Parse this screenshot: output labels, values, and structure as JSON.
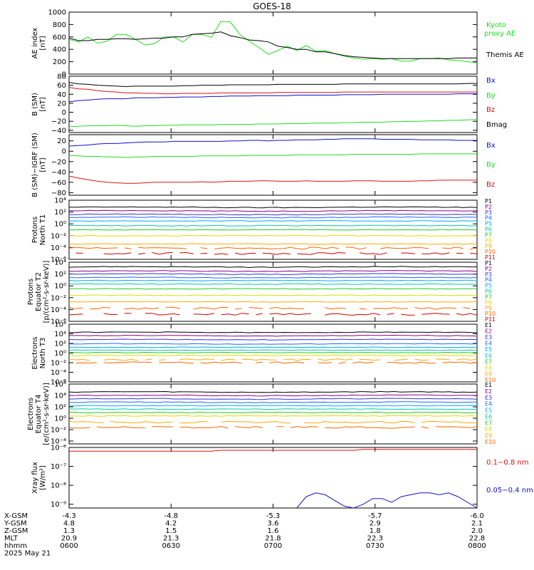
{
  "title": "GOES-18",
  "colors": {
    "black": "#000000",
    "green": "#22dd22",
    "red": "#dd1111",
    "blue": "#1111cc",
    "spectrum": [
      "#000000",
      "#8a008a",
      "#3333dd",
      "#2266ff",
      "#00aaff",
      "#00ccaa",
      "#22cc22",
      "#dddd00",
      "#ffaa00",
      "#ff6600",
      "#cc0000"
    ]
  },
  "footer": {
    "rows": [
      {
        "label": "X-GSM",
        "values": [
          "-4.3",
          "-4.8",
          "-5.3",
          "-5.7",
          "-6.0"
        ]
      },
      {
        "label": "Y-GSM",
        "values": [
          "4.8",
          "4.2",
          "3.6",
          "2.9",
          "2.1"
        ]
      },
      {
        "label": "Z-GSM",
        "values": [
          "1.3",
          "1.5",
          "1.6",
          "1.8",
          "2.0"
        ]
      },
      {
        "label": "MLT",
        "values": [
          "20.9",
          "21.3",
          "21.8",
          "22.3",
          "22.8"
        ]
      },
      {
        "label": "hhmm",
        "values": [
          "0600",
          "0630",
          "0700",
          "0730",
          "0800"
        ]
      }
    ],
    "date": "2025 May 21"
  },
  "chart_data": [
    {
      "type": "line",
      "ylabel": [
        "AE index",
        "[nT]"
      ],
      "ylim": [
        0,
        1000
      ],
      "yticks": [
        "1000",
        "800",
        "600",
        "400",
        "200",
        "0"
      ],
      "series": [
        {
          "name": "Kyoto proxy AE",
          "color": "green",
          "values": [
            560,
            520,
            600,
            500,
            530,
            640,
            640,
            560,
            470,
            490,
            600,
            600,
            520,
            640,
            640,
            590,
            850,
            840,
            640,
            530,
            430,
            320,
            380,
            450,
            380,
            460,
            370,
            380,
            330,
            290,
            260,
            240,
            250,
            240,
            250,
            210,
            210,
            250,
            250,
            260,
            230,
            220,
            200,
            180
          ]
        },
        {
          "name": "Themis AE",
          "color": "black",
          "values": [
            580,
            540,
            540,
            560,
            560,
            570,
            570,
            560,
            570,
            580,
            580,
            600,
            600,
            640,
            650,
            660,
            680,
            620,
            590,
            550,
            540,
            520,
            450,
            430,
            400,
            400,
            360,
            360,
            330,
            300,
            280,
            270,
            260,
            250,
            250,
            250,
            250,
            250,
            250,
            250,
            250,
            260,
            260,
            260
          ]
        }
      ]
    },
    {
      "type": "line",
      "ylabel": [
        "B (SM)",
        "[nT]"
      ],
      "ylim": [
        -45,
        80
      ],
      "yticks": [
        "80",
        "60",
        "40",
        "20",
        "0",
        "−20",
        "−40"
      ],
      "series": [
        {
          "name": "Bx",
          "color": "blue",
          "values": [
            23,
            26,
            27,
            29,
            30,
            30,
            30,
            32,
            32,
            32,
            33,
            33,
            34,
            34,
            34,
            35,
            35,
            36,
            36,
            36,
            37,
            37,
            37,
            37,
            38,
            38,
            38,
            38,
            38,
            39,
            39,
            39,
            39,
            40,
            40,
            40,
            40,
            40,
            40,
            40,
            40,
            41,
            41,
            41
          ]
        },
        {
          "name": "By",
          "color": "green",
          "values": [
            -32,
            -31,
            -30,
            -30,
            -30,
            -29,
            -30,
            -31,
            -30,
            -30,
            -29,
            -29,
            -28,
            -28,
            -28,
            -28,
            -27,
            -27,
            -27,
            -27,
            -26,
            -26,
            -26,
            -25,
            -25,
            -25,
            -24,
            -24,
            -24,
            -23,
            -23,
            -22,
            -22,
            -22,
            -21,
            -21,
            -20,
            -20,
            -19,
            -19,
            -18,
            -18,
            -17,
            -16
          ]
        },
        {
          "name": "Bz",
          "color": "red",
          "values": [
            55,
            52,
            51,
            48,
            46,
            45,
            43,
            43,
            42,
            42,
            41,
            41,
            42,
            42,
            42,
            42,
            43,
            43,
            43,
            43,
            43,
            43,
            44,
            44,
            44,
            44,
            44,
            44,
            44,
            45,
            45,
            45,
            45,
            45,
            45,
            45,
            45,
            45,
            45,
            45,
            45,
            45,
            45,
            45
          ]
        },
        {
          "name": "Bmag",
          "color": "black",
          "values": [
            66,
            63,
            62,
            60,
            59,
            58,
            57,
            58,
            58,
            58,
            58,
            58,
            59,
            59,
            60,
            60,
            60,
            61,
            61,
            61,
            61,
            61,
            62,
            62,
            62,
            62,
            62,
            62,
            62,
            63,
            63,
            63,
            63,
            63,
            63,
            63,
            63,
            63,
            63,
            63,
            63,
            63,
            64,
            64
          ]
        }
      ]
    },
    {
      "type": "line",
      "ylabel": [
        "B (SM)−IGRF (SM)",
        "[nT]"
      ],
      "ylim": [
        -85,
        32
      ],
      "yticks": [
        "20",
        "0",
        "−20",
        "−40",
        "−60",
        "−80"
      ],
      "series": [
        {
          "name": "Bx",
          "color": "blue",
          "values": [
            10,
            11,
            12,
            14,
            15,
            15,
            16,
            17,
            18,
            18,
            18,
            19,
            19,
            19,
            19,
            19,
            19,
            20,
            20,
            21,
            21,
            20,
            21,
            21,
            22,
            22,
            22,
            23,
            23,
            24,
            24,
            24,
            24,
            23,
            23,
            23,
            23,
            22,
            22,
            22,
            22,
            21,
            21,
            21
          ]
        },
        {
          "name": "By",
          "color": "green",
          "values": [
            -8,
            -9,
            -10,
            -10,
            -11,
            -11,
            -12,
            -11,
            -11,
            -10,
            -10,
            -10,
            -10,
            -10,
            -9,
            -9,
            -9,
            -9,
            -9,
            -8,
            -8,
            -8,
            -8,
            -8,
            -7,
            -7,
            -7,
            -7,
            -7,
            -7,
            -6,
            -6,
            -6,
            -6,
            -6,
            -6,
            -6,
            -5,
            -5,
            -5,
            -5,
            -5,
            -5,
            -5
          ]
        },
        {
          "name": "Bz",
          "color": "red",
          "values": [
            -48,
            -52,
            -55,
            -58,
            -60,
            -61,
            -62,
            -62,
            -61,
            -60,
            -60,
            -60,
            -60,
            -60,
            -59,
            -60,
            -59,
            -58,
            -58,
            -58,
            -57,
            -57,
            -58,
            -58,
            -58,
            -57,
            -58,
            -58,
            -58,
            -58,
            -57,
            -57,
            -57,
            -58,
            -58,
            -58,
            -58,
            -57,
            -57,
            -56,
            -56,
            -56,
            -56,
            -56
          ]
        }
      ]
    },
    {
      "type": "line",
      "log": true,
      "ylabel": [
        "Protons",
        "North T1"
      ],
      "ylim": [
        -6,
        4
      ],
      "yticks": [
        "10⁴",
        "10²",
        "10⁰",
        "10⁻²",
        "10⁻⁴",
        "10⁻⁶"
      ],
      "legend": [
        "P1",
        "P2",
        "P3",
        "P4",
        "P5",
        "P6",
        "P7",
        "P8",
        "P9",
        "P10",
        "P11"
      ],
      "levels": [
        2.8,
        2.2,
        1.6,
        1.1,
        0.5,
        -0.3,
        -1.0,
        -2.0,
        -3.4,
        -4.1,
        -5.0
      ]
    },
    {
      "type": "line",
      "log": true,
      "ylabel": [
        "Protons",
        "Equator T2",
        "[p/(cm²-s-sr-keV)]"
      ],
      "ylim": [
        -6,
        4
      ],
      "yticks": [
        "10⁴",
        "10²",
        "10⁰",
        "10⁻²",
        "10⁻⁴",
        "10⁻⁶"
      ],
      "legend": [
        "P1",
        "P2",
        "P3",
        "P4",
        "P5",
        "P6",
        "P7",
        "P8",
        "P9",
        "P10",
        "P11"
      ],
      "levels": [
        3.2,
        2.5,
        2.0,
        1.4,
        0.9,
        0.3,
        -0.5,
        -1.6,
        -2.7,
        -3.8,
        -4.8
      ]
    },
    {
      "type": "line",
      "log": true,
      "ylabel": [
        "Electrons",
        "North T3"
      ],
      "ylim": [
        -6,
        6
      ],
      "yticks": [
        "10⁶",
        "10⁴",
        "10²",
        "10⁰",
        "10⁻²",
        "10⁻⁴",
        "10⁻⁶"
      ],
      "legend": [
        "E1",
        "E2",
        "E3",
        "E4",
        "E5",
        "E6",
        "E7",
        "E8",
        "E9",
        "E10"
      ],
      "levels": [
        4.3,
        3.6,
        2.8,
        1.9,
        1.2,
        0.6,
        0.1,
        -0.5,
        -1.4,
        -2.0
      ]
    },
    {
      "type": "line",
      "log": true,
      "ylabel": [
        "Electrons",
        "Equator T4",
        "[e/(cm²-s-sr-keV)]"
      ],
      "ylim": [
        -4.5,
        6
      ],
      "yticks": [
        "10⁶",
        "10⁴",
        "10²",
        "10⁰",
        "10⁻²",
        "10⁻⁴"
      ],
      "legend": [
        "E1",
        "E2",
        "E3",
        "E4",
        "E5",
        "E6",
        "E7",
        "E8",
        "E9",
        "E10"
      ],
      "levels": [
        4.6,
        4.0,
        3.4,
        2.8,
        2.2,
        1.6,
        1.0,
        0.4,
        -0.7,
        -1.6
      ]
    },
    {
      "type": "line",
      "log": true,
      "ylabel": [
        "Xray flux",
        "[W/m²]"
      ],
      "ylim": [
        -9.2,
        -6
      ],
      "yticks": [
        "10⁻⁶",
        "10⁻⁷",
        "10⁻⁸",
        "10⁻⁹"
      ],
      "series": [
        {
          "name": "0.1−0.8 nm",
          "color": "red",
          "values": [
            -6.2,
            -6.2,
            -6.2,
            -6.2,
            -6.2,
            -6.2,
            -6.2,
            -6.2,
            -6.2,
            -6.2,
            -6.2,
            -6.2,
            -6.2,
            -6.2,
            -6.2,
            -6.2,
            -6.15,
            -6.15,
            -6.15,
            -6.15,
            -6.15,
            -6.15,
            -6.15,
            -6.15,
            -6.15,
            -6.15,
            -6.15,
            -6.15,
            -6.15,
            -6.15,
            -6.15,
            -6.1,
            -6.1,
            -6.1,
            -6.1,
            -6.1,
            -6.1,
            -6.1,
            -6.1,
            -6.1,
            -6.1,
            -6.1,
            -6.1,
            -6.1
          ]
        },
        {
          "name": "0.05−0.4 nm",
          "color": "blue",
          "values": [
            null,
            null,
            null,
            null,
            null,
            null,
            null,
            null,
            null,
            null,
            null,
            null,
            null,
            null,
            null,
            null,
            null,
            null,
            null,
            null,
            null,
            null,
            null,
            null,
            -9.2,
            -8.6,
            -8.4,
            -8.5,
            -8.8,
            -9.1,
            -9.2,
            -9.0,
            -8.7,
            -8.7,
            -8.9,
            -8.6,
            -8.5,
            -8.4,
            -8.4,
            -8.5,
            -8.4,
            -8.6,
            -8.9,
            -9.2
          ]
        }
      ]
    }
  ]
}
